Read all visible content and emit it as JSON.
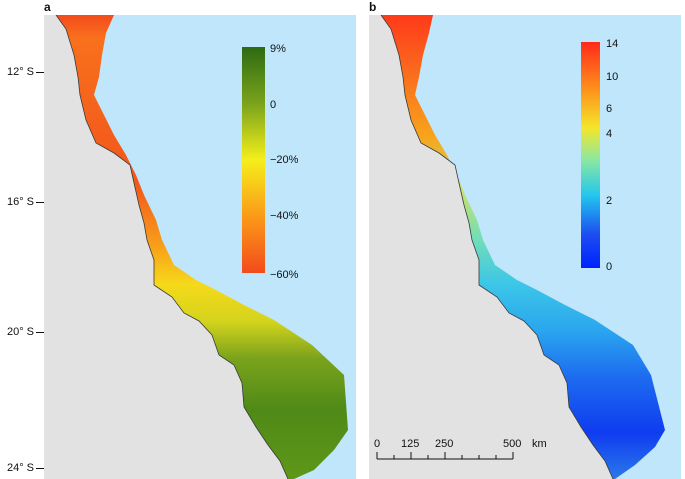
{
  "panels": [
    {
      "label": "a",
      "colorbar": {
        "ticks": [
          "9%",
          "0",
          "−20%",
          "−40%",
          "−60%"
        ],
        "stops": [
          "#2d6a12",
          "#7aa31c",
          "#f5ef1a",
          "#fb9a19",
          "#f34b1c"
        ]
      }
    },
    {
      "label": "b",
      "colorbar": {
        "ticks": [
          "14",
          "10",
          "6",
          "4",
          "2",
          "0"
        ],
        "stops": [
          "#ff2a1a",
          "#ff8c1a",
          "#f4e62b",
          "#8ce8a0",
          "#22c6ee",
          "#1d4ef0",
          "#0022ff"
        ]
      }
    }
  ],
  "latitude_labels": [
    "12° S",
    "16° S",
    "20° S",
    "24° S"
  ],
  "scale_bar": {
    "labels": [
      "0",
      "125",
      "250",
      "500"
    ],
    "unit": "km"
  },
  "colors": {
    "ocean": "#bfe6fb",
    "land": "#e2e2e2"
  }
}
